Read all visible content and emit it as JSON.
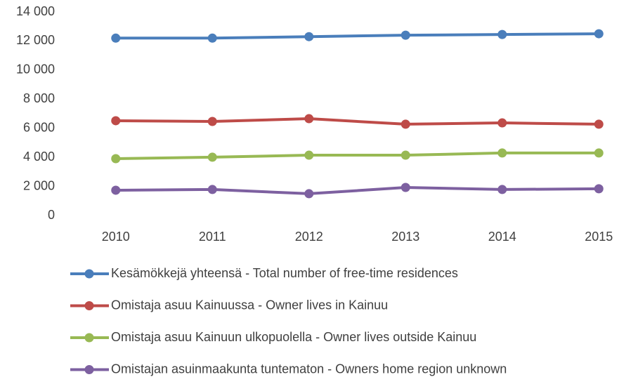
{
  "chart_data": {
    "type": "line",
    "categories": [
      "2010",
      "2011",
      "2012",
      "2013",
      "2014",
      "2015"
    ],
    "series": [
      {
        "name": "Kesämökkejä yhteensä - Total number of free-time residences",
        "color": "#4a7ebb",
        "values": [
          12200,
          12200,
          12300,
          12400,
          12450,
          12500
        ]
      },
      {
        "name": "Omistaja asuu Kainuussa - Owner lives in Kainuu",
        "color": "#be4b48",
        "values": [
          6520,
          6470,
          6660,
          6280,
          6370,
          6280
        ]
      },
      {
        "name": "Omistaja asuu Kainuun ulkopuolella - Owner lives outside Kainuu",
        "color": "#98b954",
        "values": [
          3910,
          4010,
          4150,
          4150,
          4300,
          4300
        ]
      },
      {
        "name": "Omistajan asuinmaakunta tuntematon - Owners home region unknown",
        "color": "#7d60a0",
        "values": [
          1740,
          1790,
          1500,
          1930,
          1790,
          1840
        ]
      }
    ],
    "ylim": [
      0,
      14000
    ],
    "yticks": [
      0,
      {
        "value": 2000,
        "label": "2 000"
      },
      {
        "value": 4000,
        "label": "4 000"
      },
      {
        "value": 6000,
        "label": "6 000"
      },
      {
        "value": 8000,
        "label": "8 000"
      },
      {
        "value": 10000,
        "label": "10 000"
      },
      {
        "value": 12000,
        "label": "12 000"
      },
      {
        "value": 14000,
        "label": "14 000"
      }
    ],
    "grid": false,
    "legend": "bottom"
  }
}
